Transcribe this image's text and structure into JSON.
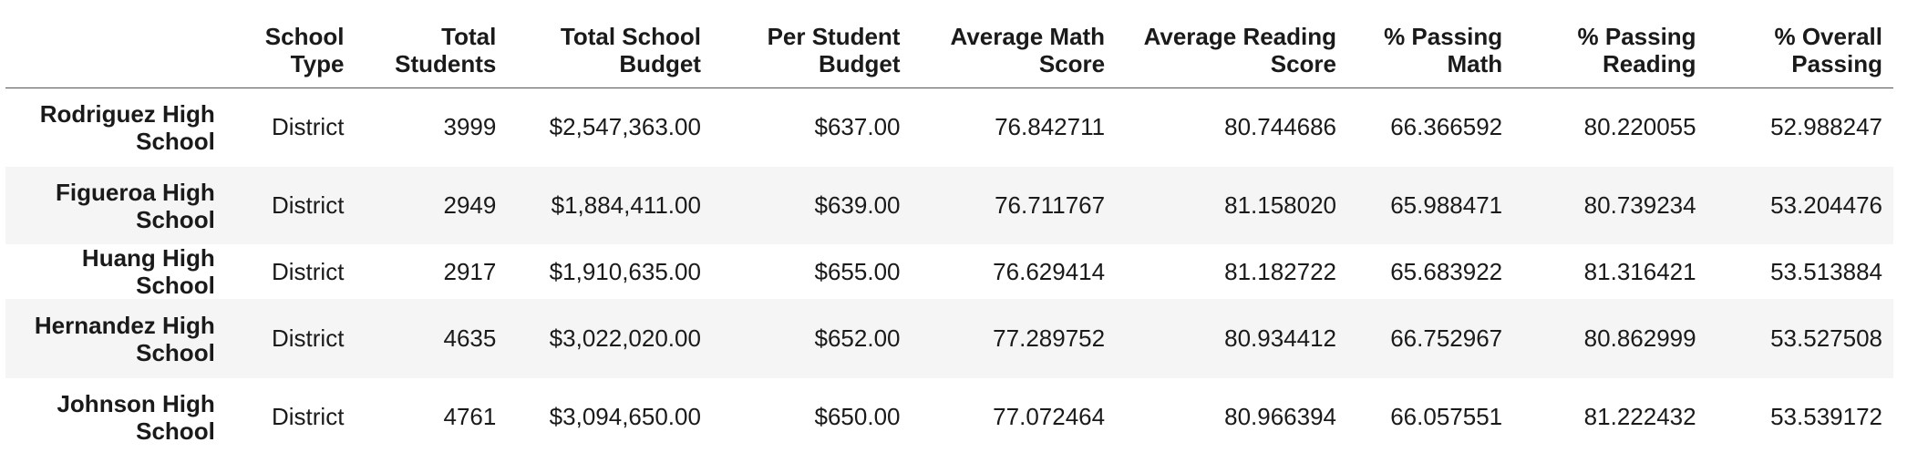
{
  "table": {
    "columns": [
      "School Type",
      "Total Students",
      "Total School Budget",
      "Per Student Budget",
      "Average Math Score",
      "Average Reading Score",
      "% Passing Math",
      "% Passing Reading",
      "% Overall Passing"
    ],
    "rows": [
      {
        "school": "Rodriguez High School",
        "cells": [
          "District",
          "3999",
          "$2,547,363.00",
          "$637.00",
          "76.842711",
          "80.744686",
          "66.366592",
          "80.220055",
          "52.988247"
        ]
      },
      {
        "school": "Figueroa High School",
        "cells": [
          "District",
          "2949",
          "$1,884,411.00",
          "$639.00",
          "76.711767",
          "81.158020",
          "65.988471",
          "80.739234",
          "53.204476"
        ]
      },
      {
        "school": "Huang High School",
        "cells": [
          "District",
          "2917",
          "$1,910,635.00",
          "$655.00",
          "76.629414",
          "81.182722",
          "65.683922",
          "81.316421",
          "53.513884"
        ]
      },
      {
        "school": "Hernandez High School",
        "cells": [
          "District",
          "4635",
          "$3,022,020.00",
          "$652.00",
          "77.289752",
          "80.934412",
          "66.752967",
          "80.862999",
          "53.527508"
        ]
      },
      {
        "school": "Johnson High School",
        "cells": [
          "District",
          "4761",
          "$3,094,650.00",
          "$650.00",
          "77.072464",
          "80.966394",
          "66.057551",
          "81.222432",
          "53.539172"
        ]
      }
    ]
  }
}
